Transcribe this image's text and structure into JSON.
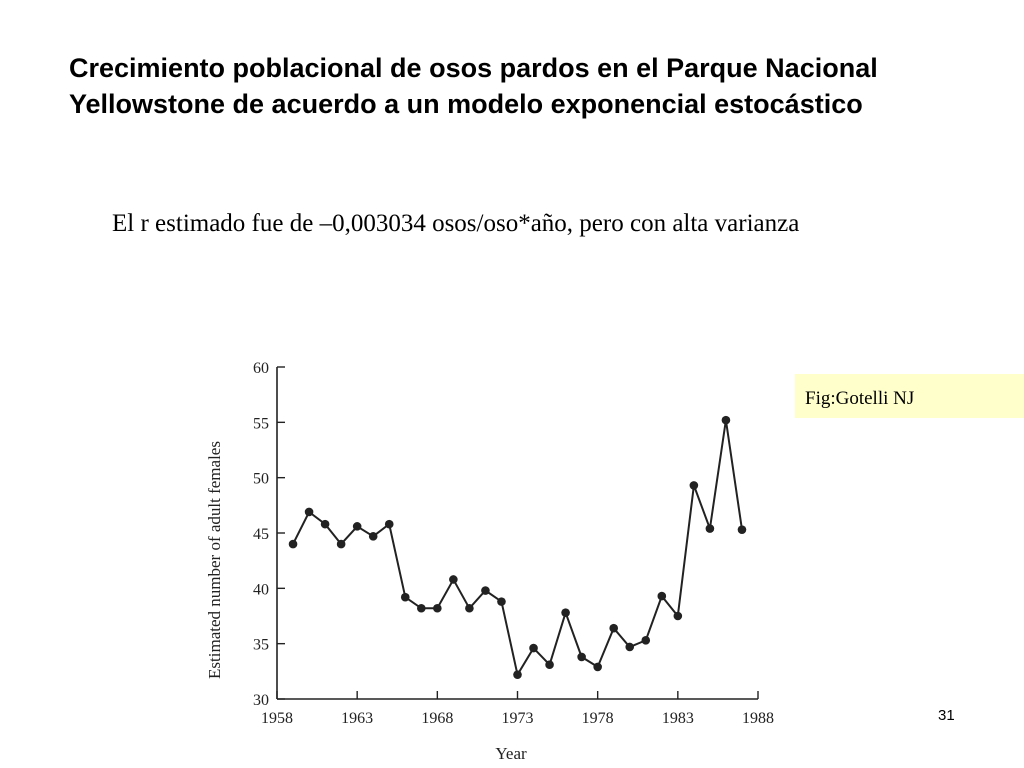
{
  "slide": {
    "title": "Crecimiento poblacional de osos pardos en el Parque Nacional Yellowstone de acuerdo a un modelo exponencial estocástico",
    "subtitle": "El r estimado fue de –0,003034 osos/oso*año, pero con alta varianza",
    "credit": "Fig:Gotelli NJ",
    "page_number": "31"
  },
  "chart_data": {
    "type": "line",
    "xlabel": "Year",
    "ylabel": "Estimated number of adult females",
    "xlim": [
      1958,
      1988
    ],
    "ylim": [
      30,
      60
    ],
    "x_ticks": [
      1958,
      1963,
      1968,
      1973,
      1978,
      1983,
      1988
    ],
    "y_ticks": [
      30,
      35,
      40,
      45,
      50,
      55,
      60
    ],
    "grid": false,
    "marker": "filled-circle",
    "line_color": "#222222",
    "x": [
      1959,
      1960,
      1961,
      1962,
      1963,
      1964,
      1965,
      1966,
      1967,
      1968,
      1969,
      1970,
      1971,
      1972,
      1973,
      1974,
      1975,
      1976,
      1977,
      1978,
      1979,
      1980,
      1981,
      1982,
      1983,
      1984,
      1985,
      1986,
      1987
    ],
    "y": [
      44.0,
      46.9,
      45.8,
      44.0,
      45.6,
      44.7,
      45.8,
      39.2,
      38.2,
      38.2,
      40.8,
      38.2,
      39.8,
      38.8,
      32.2,
      34.6,
      33.1,
      37.8,
      33.8,
      32.9,
      36.4,
      34.7,
      35.3,
      39.3,
      37.5,
      49.3,
      45.4,
      55.2,
      45.3
    ]
  }
}
